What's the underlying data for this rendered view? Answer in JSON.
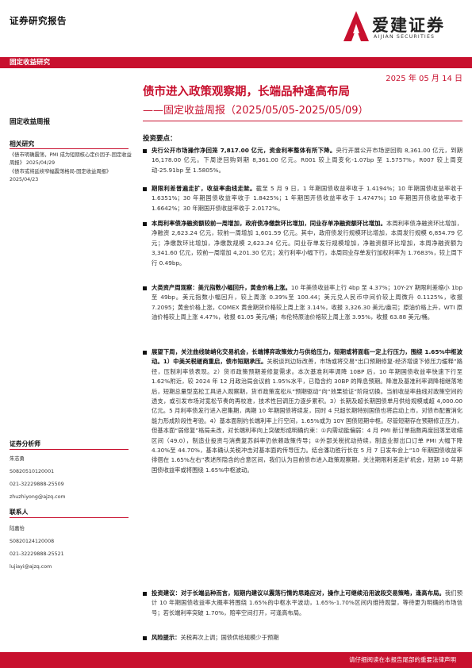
{
  "header": {
    "report_type": "证券研究报告"
  },
  "logo": {
    "cn": "爱建证券",
    "en": "AIJIAN SECURITIES"
  },
  "band": {
    "category": "固定收益研究"
  },
  "date": "2025 年 05 月 14 日",
  "title": {
    "main": "债市进入政策观察期，长端品种逢高布局",
    "subtitle": "——固定收益周报（2025/05/05-2025/05/09）"
  },
  "weekly_label": "固定收益周报",
  "sidebar": {
    "related_heading": "相关研究",
    "related": [
      "《债市明确震荡，PMI 成为短期核心定价因子-固定收益周报》 2025/04/29",
      "《债市或将延续窄幅震荡格局-固定收益周报》 2025/04/23"
    ],
    "analyst_heading": "证券分析师",
    "analyst": {
      "name": "朱志勇",
      "license": "S0820510120001",
      "phone": "021-32229888-25509",
      "email": "zhuzhiyong@ajzq.com"
    },
    "contact_heading": "联系人",
    "contact": {
      "name": "陆嘉怡",
      "license": "S0820124120008",
      "phone": "021-32229888-25521",
      "email": "lujiayi@ajzq.com"
    }
  },
  "investment": {
    "heading": "投资要点：",
    "bullets": [
      {
        "bold": "央行公开市场操作净回笼 7,817.00 亿元，资金利率整体有所下降。",
        "text": "央行开展公开市场逆回购 8,361.00 亿元，到期 16,178.00 亿元。下周逆回购到期 8,361.00 亿元。R001 较上周变化-1.07bp 至 1.5757%，R007 较上周变动-25.91bp 至 1.5805%。"
      },
      {
        "bold": "期限利差普遍走扩，收益率曲线走陡。",
        "text": "截至 5 月 9 日，1 年期国债收益率收于 1.4194%；10 年期国债收益率收于 1.6351%；30 年期国债收益率收于 1.8425%；1 年期国开债收益率收于 1.4747%；10 年期国开债收益率收于 1.6642%；30 年期国开债收益率收于 2.0172%。"
      },
      {
        "bold": "本周利率债净融资额较前一周增加，政府债净缴款环比增加，同业存单净融资额环比增加。",
        "text": "本周利率债净融资环比增加，净融资 2,623.24 亿元，较前一周增加 1,601.59 亿元。其中，政府债发行规模环比增加，本周发行规模 6,854.79 亿元；净缴款环比增加，净缴款规模 2,623.24 亿元。同业存单发行规模增加，净融资额环比增加，本周净融资额为 3,341.60 亿元，较前一周增加 4,201.30 亿元；发行利率小幅下行，本周同业存单发行加权利率为 1.7683%，较上周下行 0.49bp。"
      },
      {
        "bold": "大类资产周观察：美元指数小幅回升，黄金价格上涨。",
        "text": "10 年美债收益率上行 4bp 至 4.37%；10Y-2Y 期限利差缩小 1bp 至 49bp。美元指数小幅回升，较上周涨 0.39%至 100.44；美元兑人民币中间价较上周微升 0.1125%，收报 7.2095；黄金价格上涨，COMEX 黄金期货价格较上周上涨 3.14%，收报 3,326.30 美元/盎司；原油价格上升，WTI 原油价格较上周上涨 4.47%，收报 61.05 美元/桶；布伦特原油价格较上周上涨 3.95%，收报 63.88 美元/桶。"
      },
      {
        "bold": "展望下周，关注曲线陡峭化交易机会，长端博弈政策效力与供给压力，短期或将面临一定上行压力，围绕 1.65%中枢波动。1）中美关税磋商重启，债市短期承压。",
        "text": "关税谈判边际改善，市场或将交易“出口预期修复-经济增速下修压力缓释”路径，压制利率债表现。2）货币政策预期差修复需求。本次基准利率调降 10BP 后，10 年期国债收益率快速下行至 1.62%附近，较 2024 年 12 月政治局会议前 1.95%水平，已隐含约 30BP 的降息预期。降准及基准利率调降相继落地后，短期总量型宽松工具进入观察期，货币政策宽松从“预期驱动”向“效果验证”阶段切换。当前收益率曲线对政策空间的透支，或引发市场对宽松节奏的再校准，技术性回调压力逐步累积。3）长期及超长期国债单月供给规模或超 4,000.00 亿元。5 月利率债发行进入密集期，两期 10 年期国债将续发，同时 4 只超长期特别国债也将启动上市，对债市配置消化能力形成阶段性考验。4）基本面制约长端利率上行空间，1.65%或为 10Y 国债短期中枢。尽管短期存在预期修正压力，但基本面“弱修复”格局未改，对长端利率向上突破形成明确约束：①内需动能偏弱：4 月 PMI 新订单指数再度回落至收缩区间（49.0），制造业投资与消费复苏斜率仍依赖政策传导；②外部关税扰动持续，制造业新出口订单 PMI 大幅下降 4.30%至 44.70%，基本确认关税冲击对基本面的传导压力。结合潘功胜行长在 5 月 7 日发布会上“10 年期国债收益率徘徊在 1.65%左右”表述所隐含的合意区间，我们认为目前债市进入政策观察期，关注期限利差走扩机会，短期 10 年期国债收益率或将围绕 1.65%中枢波动。"
      },
      {
        "bold": "投资建议：对于长端品种而言，短期内建议以震荡行情的思路应对，操作上可继续沿用波段交易策略，逢高布局。",
        "text": "我们预计 10 年期国债收益率大概率将围绕 1.65%的中枢水平波动，1.65%-1.70%区间内维持观望，等待更为明确的市场信号；若长端利率突破 1.70%，赔率空间打开，可逢高布局。"
      },
      {
        "bold": "风险提示：",
        "text": "关税再次上调；国债供给规模少于预期"
      }
    ]
  },
  "footer": {
    "text": "请仔细阅读在本报告尾部的重要法律声明"
  }
}
